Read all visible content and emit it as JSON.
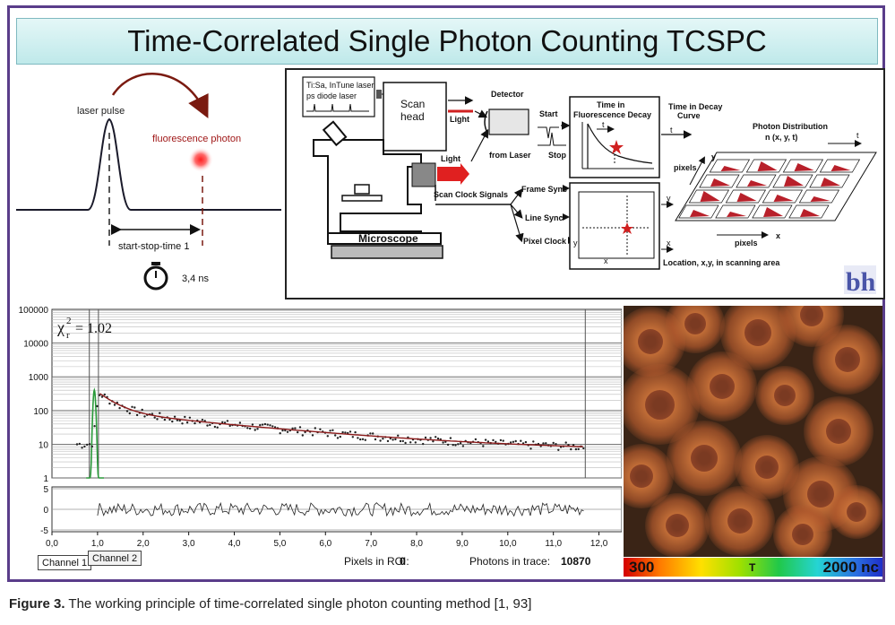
{
  "title": "Time-Correlated Single Photon Counting TCSPC",
  "timing": {
    "laser_pulse": "laser pulse",
    "fluorescence_photon": "fluorescence photon",
    "start_stop": "start-stop-time 1",
    "time_value": "3,4 ns"
  },
  "setup": {
    "laser_source": "Ti:Sa, InTune laser",
    "diode": "ps diode laser",
    "scan_head": "Scan head",
    "light_top": "Light",
    "light_mid": "Light",
    "detector": "Detector",
    "start": "Start",
    "stop": "Stop",
    "from_laser": "from Laser",
    "decay_title_1": "Time in",
    "decay_title_2": "Fluorescence Decay",
    "decay_t": "t",
    "out_title_1": "Time in Decay",
    "out_title_2": "Curve",
    "out_t": "t",
    "photon_dist_1": "Photon Distribution",
    "photon_dist_2": "n (x, y, t)",
    "pd_t": "t",
    "pd_y": "y",
    "pd_x": "x",
    "pixels_left": "pixels",
    "pixels_bottom": "pixels",
    "scan_clock": "Scan Clock Signals",
    "frame_sync": "Frame Sync",
    "line_sync": "Line Sync",
    "pixel_clock": "Pixel Clock",
    "scan_y": "y",
    "scan_x": "x",
    "out_y": "y",
    "out_x": "x",
    "location": "Location, x,y, in scanning area",
    "microscope": "Microscope",
    "logo": "bh"
  },
  "decay": {
    "y_ticks": [
      "100000",
      "10000",
      "1000",
      "100",
      "10",
      "1"
    ],
    "res_ticks": [
      "5",
      "0",
      "-5"
    ],
    "x_ticks": [
      "0,0",
      "1,0",
      "2,0",
      "3,0",
      "4,0",
      "5,0",
      "6,0",
      "7,0",
      "8,0",
      "9,0",
      "10,0",
      "11,0",
      "12,0"
    ],
    "chi_label": "χ",
    "chi_sub": "r",
    "chi_sup": "2",
    "chi_value": "= 1.02",
    "tab1": "Channel 1",
    "tab2": "Channel 2",
    "roi_label": "Pixels in ROI:",
    "roi_value": "0",
    "photons_label": "Photons in trace:",
    "photons_value": "10870"
  },
  "colorbar": {
    "min": "300",
    "mid": "T",
    "max": "2000 nc"
  },
  "caption": {
    "lead": "Figure 3.",
    "text": " The working principle of time-correlated single photon counting method [1, 93]"
  },
  "colors": {
    "frame": "#5a3d8a",
    "title_bg": "#bfe9ea",
    "decay_curve": "#8b1a1a",
    "irf": "#2a9a3a",
    "histogram": "#b8202a",
    "arrow": "#7a1a10"
  }
}
